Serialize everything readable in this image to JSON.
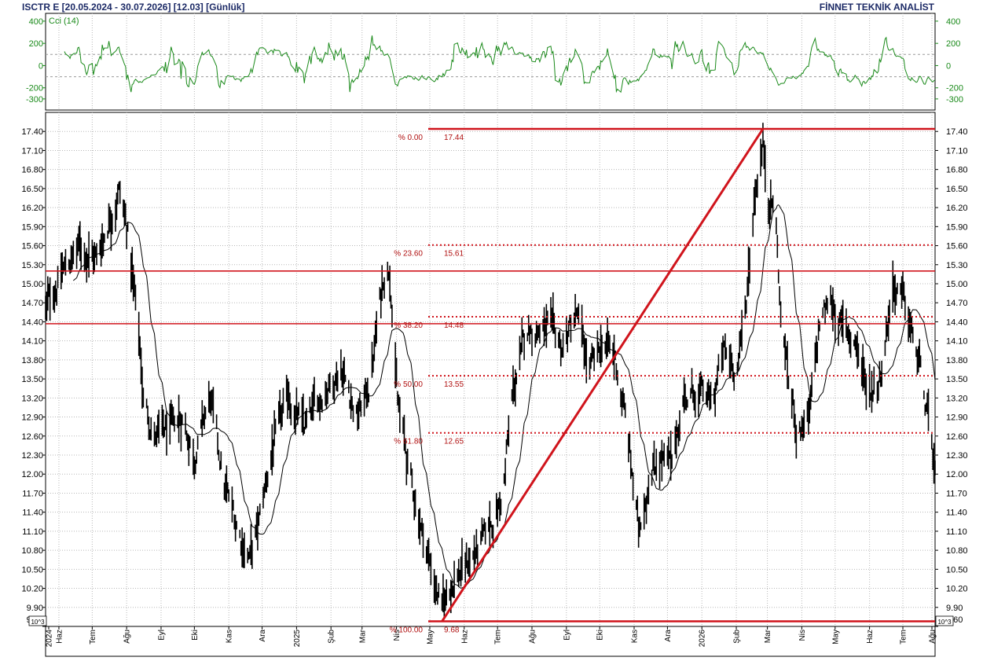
{
  "header": {
    "title": "ISCTR E  [20.05.2024 - 30.07.2026]  [12.03]  [Günlük]",
    "brand": "FİNNET TEKNİK ANALİST"
  },
  "chart_data": {
    "type": "bar",
    "symbol": "ISCTR E",
    "period": "20.05.2024 - 30.07.2026",
    "last_price": 12.03,
    "interval": "Günlük",
    "grid": true,
    "price_axis": {
      "ylim": [
        9.6,
        17.7
      ],
      "ticks": [
        17.4,
        17.1,
        16.8,
        16.5,
        16.2,
        15.9,
        15.6,
        15.3,
        15.0,
        14.7,
        14.4,
        14.1,
        13.8,
        13.5,
        13.2,
        12.9,
        12.6,
        12.3,
        12.0,
        11.7,
        11.4,
        11.1,
        10.8,
        10.5,
        10.2,
        9.9,
        9.6
      ],
      "tick_labels": [
        "17.40",
        "17.10",
        "16.80",
        "16.50",
        "16.20",
        "15.90",
        "15.60",
        "15.30",
        "15.00",
        "14.70",
        "14.40",
        "14.10",
        "13.80",
        "13.50",
        "13.20",
        "12.90",
        "12.60",
        "12.30",
        "12.00",
        "11.70",
        "11.40",
        "11.10",
        "10.80",
        "10.50",
        "10.20",
        "9.90",
        "9.60"
      ],
      "multiplier_label": "10^3"
    },
    "x_axis": {
      "labels": [
        "2024",
        "Haz",
        "Tem",
        "Ağu",
        "Eyl",
        "Eki",
        "Kas",
        "Ara",
        "2025",
        "Şub",
        "Mar",
        "Nis",
        "May",
        "Haz",
        "Tem",
        "Ağu",
        "Eyl",
        "Eki",
        "Kas",
        "Ara",
        "2026",
        "Şub",
        "Mar",
        "Nis",
        "May",
        "Haz",
        "Tem",
        "Ağu"
      ]
    },
    "price_anchors": [
      {
        "date": "2024-05-20",
        "value": 14.6
      },
      {
        "date": "2024-06-05",
        "value": 15.2
      },
      {
        "date": "2024-06-20",
        "value": 15.6
      },
      {
        "date": "2024-07-05",
        "value": 15.4
      },
      {
        "date": "2024-07-25",
        "value": 16.5
      },
      {
        "date": "2024-08-02",
        "value": 15.8
      },
      {
        "date": "2024-08-12",
        "value": 14.2
      },
      {
        "date": "2024-08-16",
        "value": 13.2
      },
      {
        "date": "2024-08-26",
        "value": 12.6
      },
      {
        "date": "2024-09-12",
        "value": 12.7
      },
      {
        "date": "2024-09-20",
        "value": 12.9
      },
      {
        "date": "2024-10-01",
        "value": 12.3
      },
      {
        "date": "2024-10-15",
        "value": 13.2
      },
      {
        "date": "2024-10-28",
        "value": 11.8
      },
      {
        "date": "2024-11-12",
        "value": 11.0
      },
      {
        "date": "2024-11-20",
        "value": 10.7
      },
      {
        "date": "2024-11-28",
        "value": 11.2
      },
      {
        "date": "2024-12-10",
        "value": 12.4
      },
      {
        "date": "2024-12-25",
        "value": 13.2
      },
      {
        "date": "2025-01-08",
        "value": 12.7
      },
      {
        "date": "2025-01-25",
        "value": 13.3
      },
      {
        "date": "2025-02-10",
        "value": 13.7
      },
      {
        "date": "2025-02-25",
        "value": 12.9
      },
      {
        "date": "2025-03-08",
        "value": 13.4
      },
      {
        "date": "2025-03-20",
        "value": 15.1
      },
      {
        "date": "2025-03-26",
        "value": 15.3
      },
      {
        "date": "2025-04-02",
        "value": 13.1
      },
      {
        "date": "2025-04-15",
        "value": 11.8
      },
      {
        "date": "2025-05-01",
        "value": 10.6
      },
      {
        "date": "2025-05-12",
        "value": 9.85
      },
      {
        "date": "2025-05-20",
        "value": 10.3
      },
      {
        "date": "2025-06-05",
        "value": 10.6
      },
      {
        "date": "2025-06-20",
        "value": 11.0
      },
      {
        "date": "2025-07-05",
        "value": 11.6
      },
      {
        "date": "2025-07-15",
        "value": 13.3
      },
      {
        "date": "2025-07-28",
        "value": 14.3
      },
      {
        "date": "2025-08-15",
        "value": 14.3
      },
      {
        "date": "2025-08-28",
        "value": 14.0
      },
      {
        "date": "2025-09-10",
        "value": 14.5
      },
      {
        "date": "2025-09-22",
        "value": 13.6
      },
      {
        "date": "2025-10-05",
        "value": 14.1
      },
      {
        "date": "2025-10-15",
        "value": 13.8
      },
      {
        "date": "2025-10-25",
        "value": 12.8
      },
      {
        "date": "2025-11-05",
        "value": 11.1
      },
      {
        "date": "2025-11-15",
        "value": 12.0
      },
      {
        "date": "2025-11-25",
        "value": 12.3
      },
      {
        "date": "2025-12-05",
        "value": 12.1
      },
      {
        "date": "2025-12-15",
        "value": 13.2
      },
      {
        "date": "2025-12-28",
        "value": 13.3
      },
      {
        "date": "2026-01-10",
        "value": 13.1
      },
      {
        "date": "2026-01-20",
        "value": 13.9
      },
      {
        "date": "2026-02-01",
        "value": 13.7
      },
      {
        "date": "2026-02-08",
        "value": 14.3
      },
      {
        "date": "2026-02-18",
        "value": 16.5
      },
      {
        "date": "2026-02-25",
        "value": 17.2
      },
      {
        "date": "2026-03-02",
        "value": 16.4
      },
      {
        "date": "2026-03-08",
        "value": 16.2
      },
      {
        "date": "2026-03-13",
        "value": 14.5
      },
      {
        "date": "2026-03-20",
        "value": 13.5
      },
      {
        "date": "2026-03-28",
        "value": 12.7
      },
      {
        "date": "2026-04-08",
        "value": 12.9
      },
      {
        "date": "2026-04-18",
        "value": 14.5
      },
      {
        "date": "2026-04-28",
        "value": 14.7
      },
      {
        "date": "2026-05-08",
        "value": 14.3
      },
      {
        "date": "2026-05-20",
        "value": 14.1
      },
      {
        "date": "2026-05-30",
        "value": 13.3
      },
      {
        "date": "2026-06-10",
        "value": 13.5
      },
      {
        "date": "2026-06-22",
        "value": 15.0
      },
      {
        "date": "2026-06-30",
        "value": 14.8
      },
      {
        "date": "2026-07-08",
        "value": 14.3
      },
      {
        "date": "2026-07-16",
        "value": 13.7
      },
      {
        "date": "2026-07-22",
        "value": 13.0
      },
      {
        "date": "2026-07-30",
        "value": 12.03
      }
    ],
    "fibonacci": {
      "swing_low": {
        "date": "2025-05-12",
        "value": 9.68
      },
      "swing_high": {
        "date": "2026-02-25",
        "value": 17.44
      },
      "levels": [
        {
          "pct": "% 0.00",
          "value": "17.44",
          "price": 17.44,
          "style": "solid"
        },
        {
          "pct": "% 23.60",
          "value": "15.61",
          "price": 15.61,
          "style": "dotted"
        },
        {
          "pct": "% 38.20",
          "value": "14.48",
          "price": 14.48,
          "style": "dotted"
        },
        {
          "pct": "% 50.00",
          "value": "13.55",
          "price": 13.55,
          "style": "dotted"
        },
        {
          "pct": "% 61.80",
          "value": "12.65",
          "price": 12.65,
          "style": "dotted"
        },
        {
          "pct": "% 100.00",
          "value": "9.68",
          "price": 9.68,
          "style": "solid"
        }
      ]
    },
    "horizontal_lines": [
      15.2,
      14.37
    ],
    "moving_average": {
      "color": "#000000"
    },
    "indicator": {
      "name": "Cci (14)",
      "color": "#1a8a1a",
      "ylim": [
        -400,
        470
      ],
      "ticks": [
        400,
        200,
        0,
        -200,
        -300
      ],
      "tick_labels": [
        "400",
        "200",
        "0",
        "-200",
        "-300"
      ],
      "dashed_levels": [
        100,
        -100
      ]
    },
    "colors": {
      "price_bars": "#000000",
      "fib_lines": "#d0141c",
      "fib_text": "#b01010",
      "axis_text": "#000000",
      "indicator_text": "#1a8a1a",
      "header_text": "#1c2a66"
    }
  }
}
